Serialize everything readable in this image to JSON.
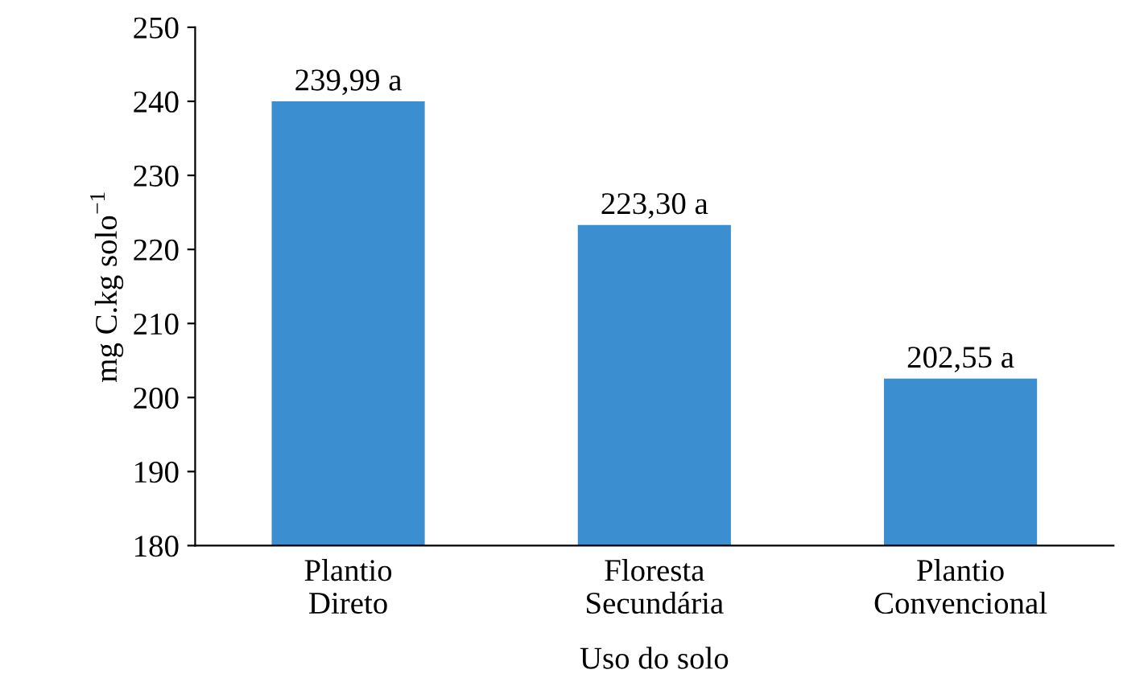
{
  "chart_data": {
    "type": "bar",
    "xlabel": "Uso do solo",
    "ylabel": "mg C.kg solo$^{−1}$",
    "categories": [
      "Plantio\nDireto",
      "Floresta\nSecundária",
      "Plantio\nConvencional"
    ],
    "values": [
      239.99,
      223.3,
      202.55
    ],
    "value_labels": [
      "239,99 a",
      "223,30 a",
      "202,55 a"
    ],
    "color": "#3b8ed0",
    "ylim": [
      180,
      250
    ],
    "yticks": [
      180,
      190,
      200,
      210,
      220,
      230,
      240,
      250
    ],
    "grid": false,
    "legend": false
  }
}
